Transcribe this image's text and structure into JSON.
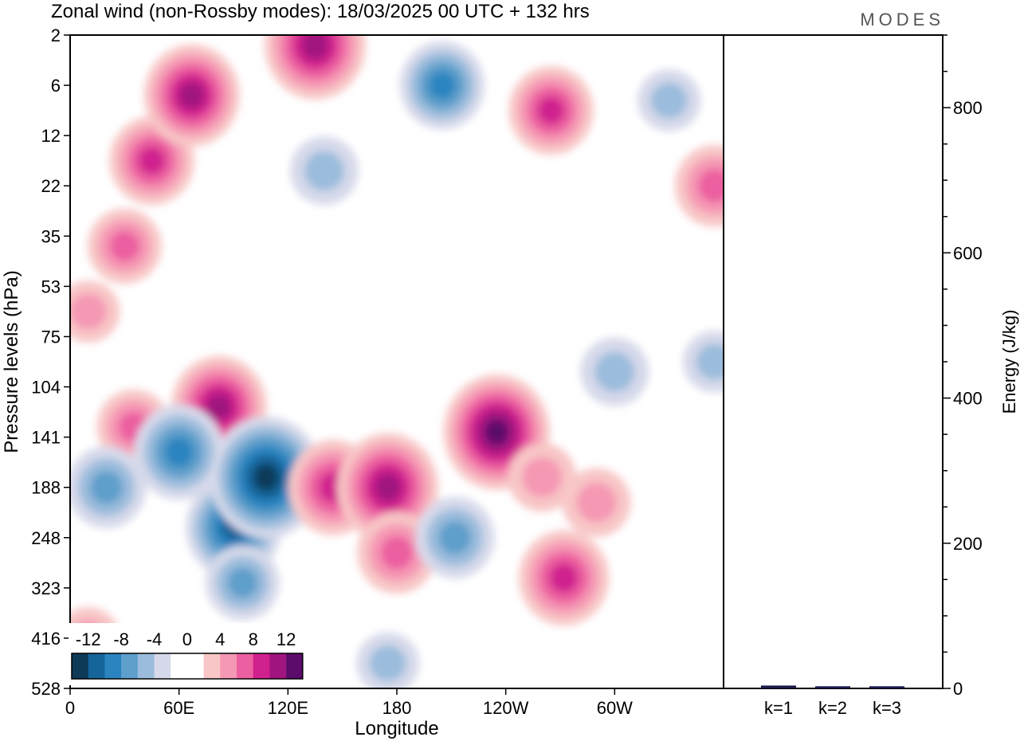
{
  "title": "Zonal wind (non-Rossby modes):  18/03/2025  00 UTC  + 132 hrs",
  "brand": "MODES",
  "chart_data": [
    {
      "type": "heatmap",
      "xlabel": "Longitude",
      "ylabel": "Pressure levels (hPa)",
      "x_ticks": [
        "0",
        "60E",
        "120E",
        "180",
        "120W",
        "60W"
      ],
      "y_ticks": [
        "2",
        "6",
        "12",
        "22",
        "35",
        "53",
        "75",
        "104",
        "141",
        "188",
        "248",
        "323",
        "416",
        "528"
      ],
      "colorbar": {
        "labels": [
          "-12",
          "-8",
          "-4",
          "0",
          "4",
          "8",
          "12"
        ],
        "colors": [
          "#0e3a58",
          "#15649a",
          "#2a84bf",
          "#5e9fcb",
          "#9bbcdc",
          "#d6d9ea",
          "#ffffff",
          "#ffffff",
          "#f8c6c6",
          "#f598b4",
          "#ec5fa0",
          "#d0218e",
          "#a0157f",
          "#5c0c6a"
        ]
      },
      "blobs": [
        {
          "lon": 45,
          "lev": 2.5,
          "value": 8
        },
        {
          "lon": 30,
          "lev": 4.2,
          "value": 6
        },
        {
          "lon": 67,
          "lev": 1.2,
          "value": 10
        },
        {
          "lon": 135,
          "lev": 0.2,
          "value": 11
        },
        {
          "lon": 205,
          "lev": 1.0,
          "value": -8
        },
        {
          "lon": 140,
          "lev": 2.7,
          "value": -5
        },
        {
          "lon": 265,
          "lev": 1.5,
          "value": 8
        },
        {
          "lon": 330,
          "lev": 1.3,
          "value": -4
        },
        {
          "lon": 355,
          "lev": 3.0,
          "value": 7
        },
        {
          "lon": 10,
          "lev": 5.5,
          "value": 4
        },
        {
          "lon": 355,
          "lev": 6.5,
          "value": -4
        },
        {
          "lon": 82,
          "lev": 7.4,
          "value": 10
        },
        {
          "lon": 35,
          "lev": 7.8,
          "value": 6
        },
        {
          "lon": 60,
          "lev": 8.3,
          "value": -9
        },
        {
          "lon": 20,
          "lev": 9.0,
          "value": -7
        },
        {
          "lon": 90,
          "lev": 9.8,
          "value": -10
        },
        {
          "lon": 108,
          "lev": 8.8,
          "value": -13
        },
        {
          "lon": 95,
          "lev": 10.9,
          "value": -6
        },
        {
          "lon": 145,
          "lev": 9.0,
          "value": 9
        },
        {
          "lon": 175,
          "lev": 9.0,
          "value": 11
        },
        {
          "lon": 180,
          "lev": 10.3,
          "value": 7
        },
        {
          "lon": 235,
          "lev": 7.9,
          "value": 12
        },
        {
          "lon": 212,
          "lev": 10.0,
          "value": -7
        },
        {
          "lon": 272,
          "lev": 10.8,
          "value": 9
        },
        {
          "lon": 290,
          "lev": 9.3,
          "value": 5
        },
        {
          "lon": 300,
          "lev": 6.7,
          "value": -5
        },
        {
          "lon": 260,
          "lev": 8.8,
          "value": 5
        },
        {
          "lon": 175,
          "lev": 12.5,
          "value": -4
        },
        {
          "lon": 10,
          "lev": 12.0,
          "value": 4
        }
      ]
    },
    {
      "type": "bar",
      "categories": [
        "k=1",
        "k=2",
        "k=3"
      ],
      "values": [
        4,
        3,
        3
      ],
      "ylabel": "Energy (J/kg)",
      "ylim": [
        0,
        900
      ],
      "y_ticks": [
        0,
        200,
        400,
        600,
        800
      ]
    }
  ]
}
